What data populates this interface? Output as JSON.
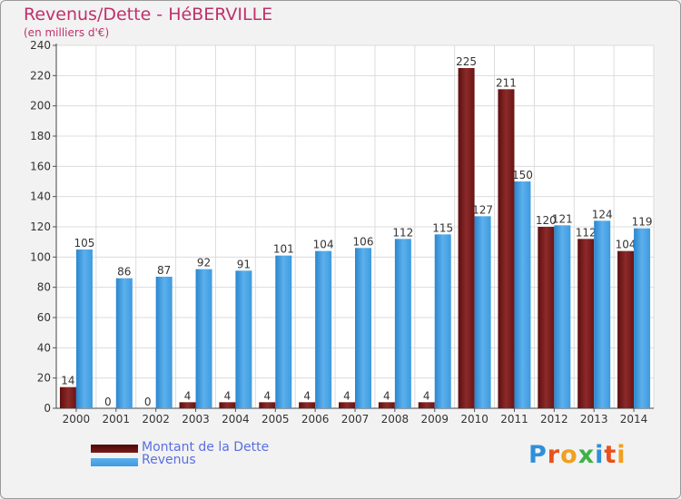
{
  "chart_data": {
    "type": "bar",
    "title": "Revenus/Dette - HéBERVILLE",
    "subtitle": "(en milliers d'€)",
    "categories": [
      "2000",
      "2001",
      "2002",
      "2003",
      "2004",
      "2005",
      "2006",
      "2007",
      "2008",
      "2009",
      "2010",
      "2011",
      "2012",
      "2013",
      "2014"
    ],
    "series": [
      {
        "name": "Montant de la Dette",
        "color": "#7a1a1a",
        "values": [
          14,
          0,
          0,
          4,
          4,
          4,
          4,
          4,
          4,
          4,
          225,
          211,
          120,
          112,
          104
        ]
      },
      {
        "name": "Revenus",
        "color": "#3d9be0",
        "values": [
          105,
          86,
          87,
          92,
          91,
          101,
          104,
          106,
          112,
          115,
          127,
          150,
          121,
          124,
          119
        ]
      }
    ],
    "ylim": [
      0,
      240
    ],
    "yticks": [
      0,
      20,
      40,
      60,
      80,
      100,
      120,
      140,
      160,
      180,
      200,
      220,
      240
    ],
    "grid": true,
    "legend": "bottom-left"
  },
  "logo": {
    "text": "Proxiti",
    "colors": [
      "#2f8fd8",
      "#e8501c",
      "#f0a020",
      "#3fb14a",
      "#2f8fd8",
      "#e8501c",
      "#f0a020"
    ]
  }
}
